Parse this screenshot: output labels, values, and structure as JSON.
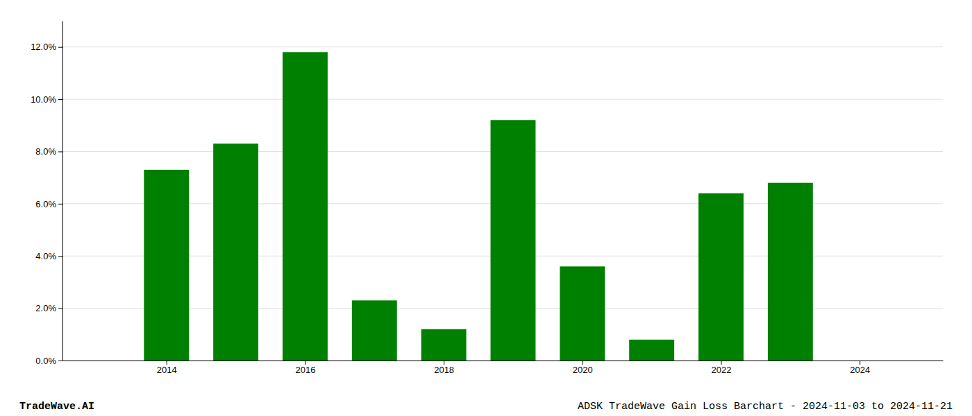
{
  "chart_data": {
    "type": "bar",
    "title": "ADSK TradeWave Gain Loss Barchart - 2024-11-03 to 2024-11-21",
    "annotations": [
      "TradeWave.AI"
    ],
    "x": [
      2014,
      2015,
      2016,
      2017,
      2018,
      2019,
      2020,
      2021,
      2022,
      2023,
      2024
    ],
    "values": [
      0.073,
      0.083,
      0.118,
      0.023,
      0.012,
      0.092,
      0.036,
      0.008,
      0.064,
      0.068,
      0.0
    ],
    "color": "#008000",
    "xlim": [
      2012.5,
      2025.2
    ],
    "xticks": [
      2014,
      2016,
      2018,
      2020,
      2022,
      2024
    ],
    "ylim": [
      0,
      0.13
    ],
    "yticks": [
      {
        "value": 0.0,
        "label": "0.0%"
      },
      {
        "value": 0.02,
        "label": "2.0%"
      },
      {
        "value": 0.04,
        "label": "4.0%"
      },
      {
        "value": 0.06,
        "label": "6.0%"
      },
      {
        "value": 0.08,
        "label": "8.0%"
      },
      {
        "value": 0.1,
        "label": "10.0%"
      },
      {
        "value": 0.12,
        "label": "12.0%"
      }
    ],
    "grid": true
  }
}
